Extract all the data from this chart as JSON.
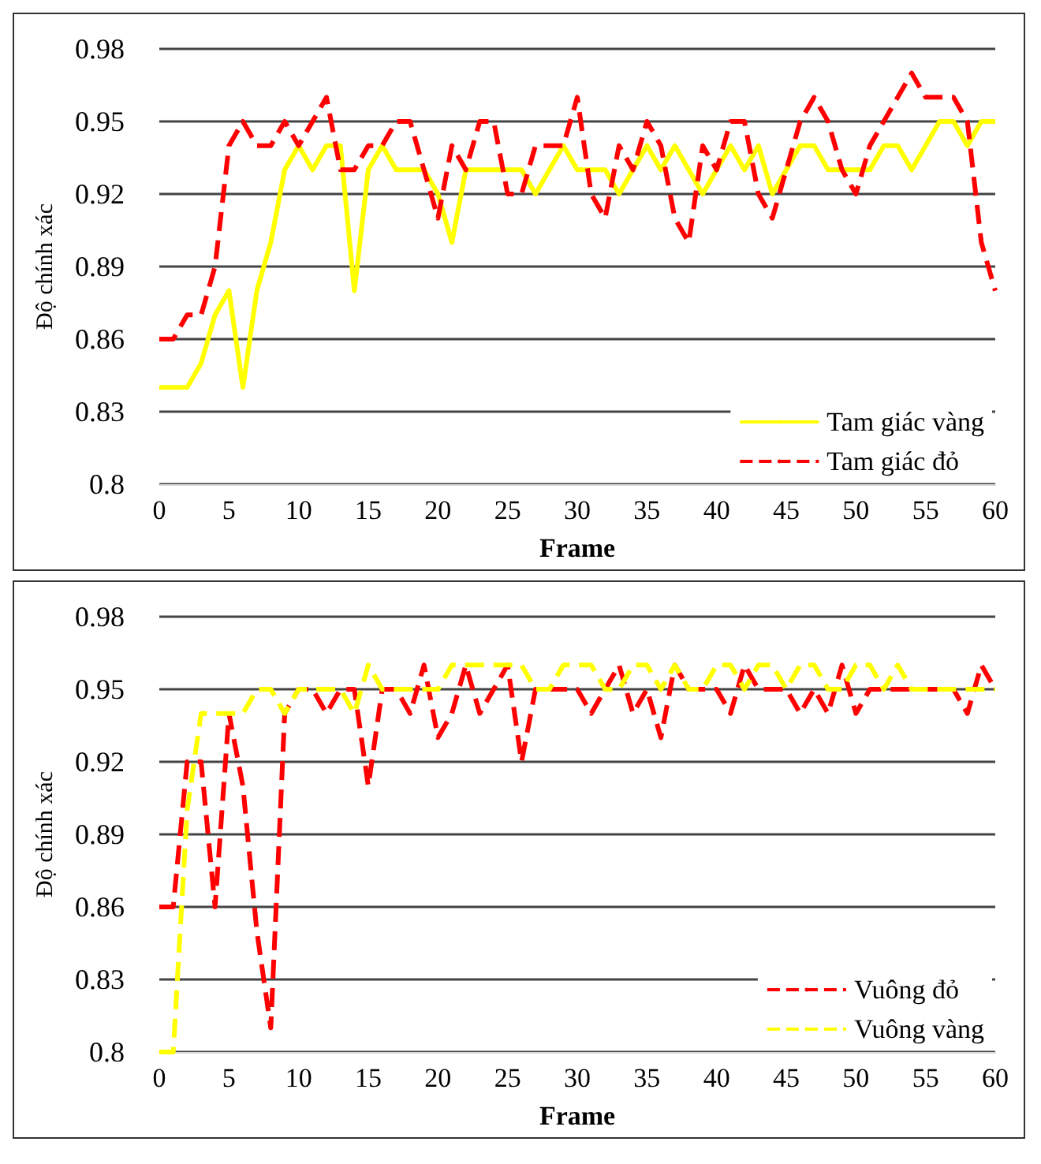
{
  "chart_data": [
    {
      "type": "line",
      "xlabel": "Frame",
      "ylabel": "Độ chính xác",
      "x": [
        0,
        1,
        2,
        3,
        4,
        5,
        6,
        7,
        8,
        9,
        10,
        11,
        12,
        13,
        14,
        15,
        16,
        17,
        18,
        19,
        20,
        21,
        22,
        23,
        24,
        25,
        26,
        27,
        28,
        29,
        30,
        31,
        32,
        33,
        34,
        35,
        36,
        37,
        38,
        39,
        40,
        41,
        42,
        43,
        44,
        45,
        46,
        47,
        48,
        49,
        50,
        51,
        52,
        53,
        54,
        55,
        56,
        57,
        58,
        59,
        60
      ],
      "xlim": [
        0,
        60
      ],
      "xticks": [
        0,
        5,
        10,
        15,
        20,
        25,
        30,
        35,
        40,
        45,
        50,
        55,
        60
      ],
      "ylim": [
        0.8,
        0.98
      ],
      "yticks": [
        0.8,
        0.83,
        0.86,
        0.89,
        0.92,
        0.95,
        0.98
      ],
      "grid": "y",
      "legend": "bottom right",
      "marker": "none",
      "series": [
        {
          "name": "Tam giác vàng",
          "color": "#ffff00",
          "line_style": "solid",
          "values": [
            0.84,
            0.84,
            0.84,
            0.85,
            0.87,
            0.88,
            0.84,
            0.88,
            0.9,
            0.93,
            0.94,
            0.93,
            0.94,
            0.94,
            0.88,
            0.93,
            0.94,
            0.93,
            0.93,
            0.93,
            0.92,
            0.9,
            0.93,
            0.93,
            0.93,
            0.93,
            0.93,
            0.92,
            0.93,
            0.94,
            0.93,
            0.93,
            0.93,
            0.92,
            0.93,
            0.94,
            0.93,
            0.94,
            0.93,
            0.92,
            0.93,
            0.94,
            0.93,
            0.94,
            0.92,
            0.93,
            0.94,
            0.94,
            0.93,
            0.93,
            0.93,
            0.93,
            0.94,
            0.94,
            0.93,
            0.94,
            0.95,
            0.95,
            0.94,
            0.95,
            0.95
          ]
        },
        {
          "name": "Tam giác đỏ",
          "color": "#ff0000",
          "line_style": "dashed",
          "values": [
            0.86,
            0.86,
            0.87,
            0.87,
            0.89,
            0.94,
            0.95,
            0.94,
            0.94,
            0.95,
            0.94,
            0.95,
            0.96,
            0.93,
            0.93,
            0.94,
            0.94,
            0.95,
            0.95,
            0.93,
            0.91,
            0.94,
            0.93,
            0.95,
            0.95,
            0.92,
            0.92,
            0.94,
            0.94,
            0.94,
            0.96,
            0.92,
            0.91,
            0.94,
            0.93,
            0.95,
            0.94,
            0.91,
            0.9,
            0.94,
            0.93,
            0.95,
            0.95,
            0.92,
            0.91,
            0.93,
            0.95,
            0.96,
            0.95,
            0.93,
            0.92,
            0.94,
            0.95,
            0.96,
            0.97,
            0.96,
            0.96,
            0.96,
            0.95,
            0.9,
            0.88
          ]
        }
      ]
    },
    {
      "type": "line",
      "xlabel": "Frame",
      "ylabel": "Độ chính xác",
      "x": [
        0,
        1,
        2,
        3,
        4,
        5,
        6,
        7,
        8,
        9,
        10,
        11,
        12,
        13,
        14,
        15,
        16,
        17,
        18,
        19,
        20,
        21,
        22,
        23,
        24,
        25,
        26,
        27,
        28,
        29,
        30,
        31,
        32,
        33,
        34,
        35,
        36,
        37,
        38,
        39,
        40,
        41,
        42,
        43,
        44,
        45,
        46,
        47,
        48,
        49,
        50,
        51,
        52,
        53,
        54,
        55,
        56,
        57,
        58,
        59,
        60
      ],
      "xlim": [
        0,
        60
      ],
      "xticks": [
        0,
        5,
        10,
        15,
        20,
        25,
        30,
        35,
        40,
        45,
        50,
        55,
        60
      ],
      "ylim": [
        0.8,
        0.98
      ],
      "yticks": [
        0.8,
        0.83,
        0.86,
        0.89,
        0.92,
        0.95,
        0.98
      ],
      "grid": "y",
      "legend": "bottom right",
      "marker": "none",
      "series": [
        {
          "name": "Vuông đỏ",
          "color": "#ff0000",
          "line_style": "dashed",
          "values": [
            0.86,
            0.86,
            0.92,
            0.92,
            0.86,
            0.94,
            0.91,
            0.85,
            0.81,
            0.94,
            0.95,
            0.95,
            0.94,
            0.95,
            0.95,
            0.91,
            0.95,
            0.95,
            0.94,
            0.96,
            0.93,
            0.94,
            0.96,
            0.94,
            0.95,
            0.96,
            0.92,
            0.95,
            0.95,
            0.95,
            0.95,
            0.94,
            0.95,
            0.96,
            0.94,
            0.95,
            0.93,
            0.96,
            0.95,
            0.95,
            0.95,
            0.94,
            0.96,
            0.95,
            0.95,
            0.95,
            0.94,
            0.95,
            0.94,
            0.96,
            0.94,
            0.95,
            0.95,
            0.95,
            0.95,
            0.95,
            0.95,
            0.95,
            0.94,
            0.96,
            0.95
          ]
        },
        {
          "name": "Vuông vàng",
          "color": "#ffff00",
          "line_style": "dashed",
          "values": [
            0.8,
            0.8,
            0.9,
            0.94,
            0.94,
            0.94,
            0.94,
            0.95,
            0.95,
            0.94,
            0.95,
            0.95,
            0.95,
            0.95,
            0.94,
            0.96,
            0.95,
            0.95,
            0.95,
            0.95,
            0.95,
            0.96,
            0.96,
            0.96,
            0.96,
            0.96,
            0.96,
            0.95,
            0.95,
            0.96,
            0.96,
            0.96,
            0.95,
            0.95,
            0.96,
            0.96,
            0.95,
            0.96,
            0.95,
            0.95,
            0.96,
            0.96,
            0.95,
            0.96,
            0.96,
            0.95,
            0.96,
            0.96,
            0.95,
            0.95,
            0.96,
            0.96,
            0.95,
            0.96,
            0.95,
            0.95,
            0.95,
            0.95,
            0.95,
            0.95,
            0.95
          ]
        }
      ]
    }
  ]
}
